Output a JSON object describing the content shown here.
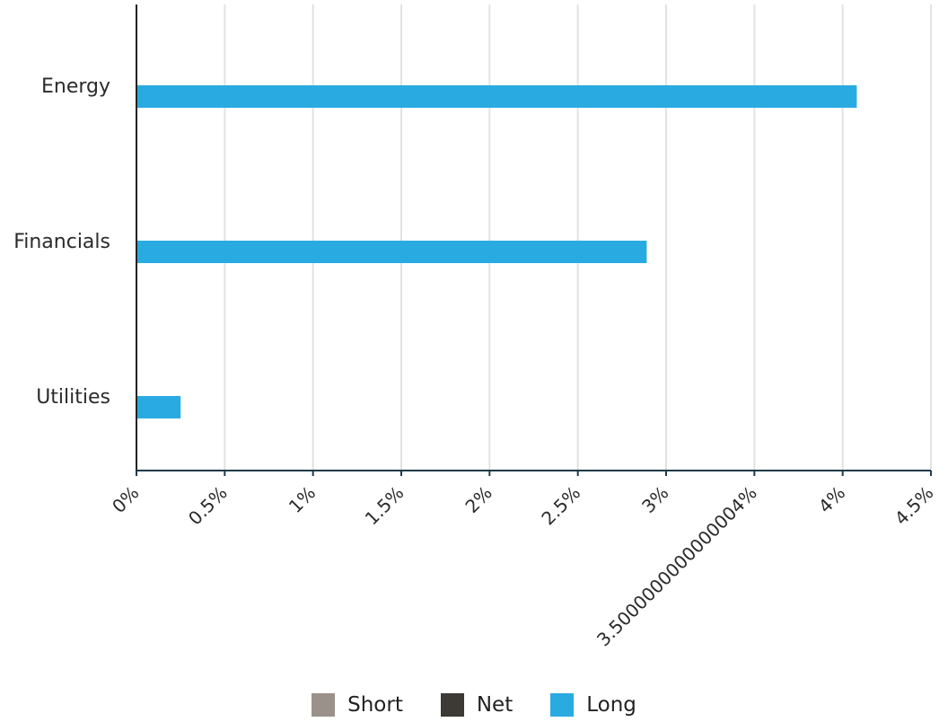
{
  "chart_data": {
    "type": "bar",
    "orientation": "horizontal",
    "categories": [
      "Energy",
      "Financials",
      "Utilities"
    ],
    "series": [
      {
        "name": "Short",
        "values": [
          0,
          0,
          0
        ],
        "color": "#9a928a"
      },
      {
        "name": "Net",
        "values": [
          0,
          0,
          0
        ],
        "color": "#3d3935"
      },
      {
        "name": "Long",
        "values": [
          4.08,
          2.89,
          0.25
        ],
        "color": "#29abe2"
      }
    ],
    "xlim": [
      0,
      4.5
    ],
    "x_ticks": [
      0,
      0.5,
      1,
      1.5,
      2,
      2.5,
      3,
      3.5,
      4,
      4.5
    ],
    "x_tick_labels": [
      "0%",
      "0.5%",
      "1%",
      "1.5%",
      "2%",
      "2.5%",
      "3%",
      "3.5000000000000004%",
      "4%",
      "4.5%"
    ],
    "grid": true,
    "legend_position": "bottom",
    "title": "",
    "xlabel": "",
    "ylabel": ""
  }
}
